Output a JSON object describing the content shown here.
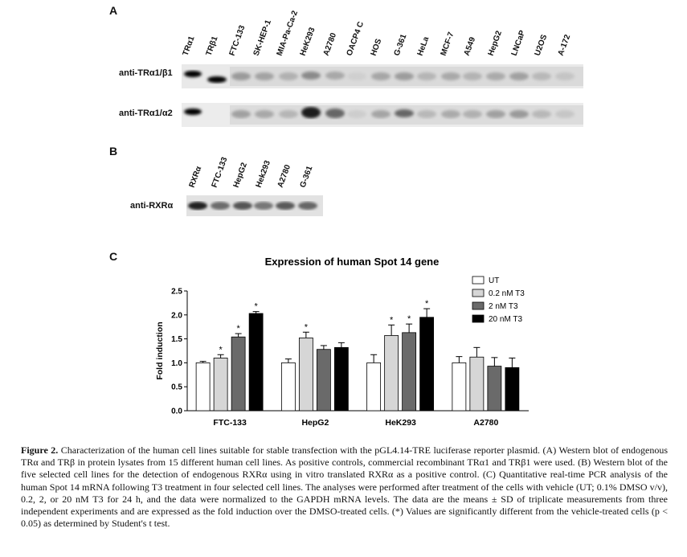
{
  "panel_a": {
    "letter": "A",
    "lanes": [
      "TRα1",
      "TRβ1",
      "FTC-133",
      "SK-HEP-1",
      "MIA-Pa-Ca-2",
      "HeK293",
      "A2780",
      "OACP4 C",
      "HOS",
      "G-361",
      "HeLa",
      "MCF-7",
      "A549",
      "HepG2",
      "LNCaP",
      "U2OS",
      "A-172"
    ],
    "rows": [
      "anti-TRα1/β1",
      "anti-TRα1/α2"
    ]
  },
  "panel_b": {
    "letter": "B",
    "lanes": [
      "RXRα",
      "FTC-133",
      "HepG2",
      "Hek293",
      "A2780",
      "G-361"
    ],
    "rows": [
      "anti-RXRα"
    ]
  },
  "panel_c": {
    "letter": "C"
  },
  "chart_data": {
    "type": "bar",
    "title": "Expression of human Spot 14 gene",
    "ylabel": "Fold induction",
    "xlabel": "",
    "ylim": [
      0,
      2.5
    ],
    "yticks": [
      "0.0",
      "0.5",
      "1.0",
      "1.5",
      "2.0",
      "2.5"
    ],
    "categories": [
      "FTC-133",
      "HepG2",
      "HeK293",
      "A2780"
    ],
    "legend_position": "top-right",
    "series": [
      {
        "name": "UT",
        "color": "#ffffff",
        "values": [
          1.0,
          1.0,
          1.0,
          1.0
        ],
        "errors": [
          0.03,
          0.08,
          0.17,
          0.13
        ],
        "significant": [
          false,
          false,
          false,
          false
        ]
      },
      {
        "name": "0.2 nM T3",
        "color": "#d6d6d6",
        "values": [
          1.1,
          1.52,
          1.57,
          1.12
        ],
        "errors": [
          0.07,
          0.12,
          0.22,
          0.2
        ],
        "significant": [
          true,
          true,
          true,
          false
        ]
      },
      {
        "name": "2 nM T3",
        "color": "#6a6a6a",
        "values": [
          1.54,
          1.28,
          1.63,
          0.93
        ],
        "errors": [
          0.07,
          0.08,
          0.18,
          0.18
        ],
        "significant": [
          true,
          false,
          true,
          false
        ]
      },
      {
        "name": "20 nM T3",
        "color": "#000000",
        "values": [
          2.03,
          1.32,
          1.95,
          0.9
        ],
        "errors": [
          0.04,
          0.1,
          0.18,
          0.2
        ],
        "significant": [
          true,
          false,
          true,
          false
        ]
      }
    ],
    "significance_marker": "*"
  },
  "caption": {
    "label": "Figure 2.",
    "text": "Characterization of the human cell lines suitable for stable transfection with the pGL4.14-TRE luciferase reporter plasmid. (A) Western blot of endogenous TRα and TRβ in protein lysates from 15 different human cell lines. As positive controls, commercial recombinant TRα1 and TRβ1 were used. (B) Western blot of the five selected cell lines for the detection of endogenous RXRα using in vitro translated RXRα as a positive control. (C) Quantitative real-time PCR analysis of the human Spot 14 mRNA following T3 treatment in four selected cell lines. The analyses were performed after treatment of the cells with vehicle (UT; 0.1% DMSO v/v), 0.2, 2, or 20 nM T3 for 24 h, and the data were normalized to the GAPDH mRNA levels. The data are the means ± SD of triplicate measurements from three independent experiments and are expressed as the fold induction over the DMSO-treated cells. (*) Values are significantly different from the vehicle-treated cells (p < 0.05) as determined by Student's t test."
  }
}
